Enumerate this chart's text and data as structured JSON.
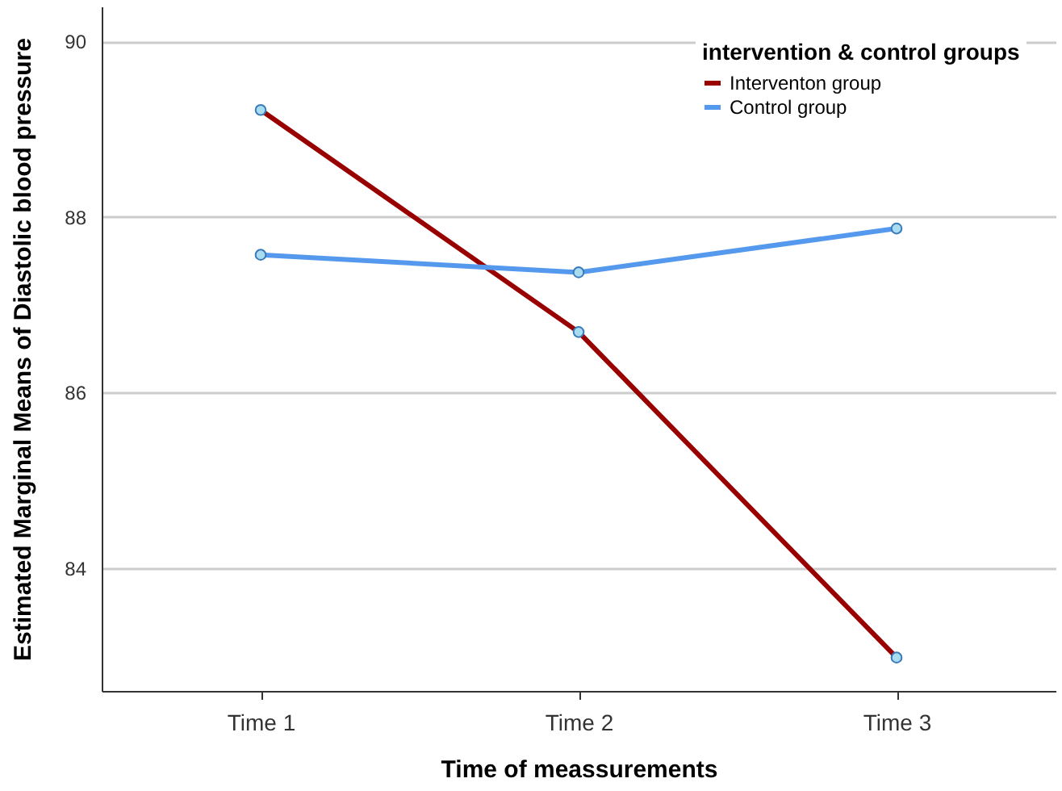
{
  "chart_data": {
    "type": "line",
    "xlabel": "Time of meassurements",
    "ylabel": "Estimated Marginal Means of Diastolic blood pressure",
    "legend_title": "intervention & control groups",
    "categories": [
      "Time 1",
      "Time 2",
      "Time 3"
    ],
    "series": [
      {
        "name": "Interventon group",
        "color": "#990000",
        "values": [
          89.22,
          86.69,
          82.98
        ]
      },
      {
        "name": "Control group",
        "color": "#5599ee",
        "values": [
          87.57,
          87.37,
          87.87
        ]
      }
    ],
    "ylim": [
      82.6,
      90.4
    ],
    "yticks": [
      84,
      86,
      88,
      90
    ],
    "grid": "y",
    "legend": "top right",
    "marker": "circle",
    "line_style": "solid"
  }
}
